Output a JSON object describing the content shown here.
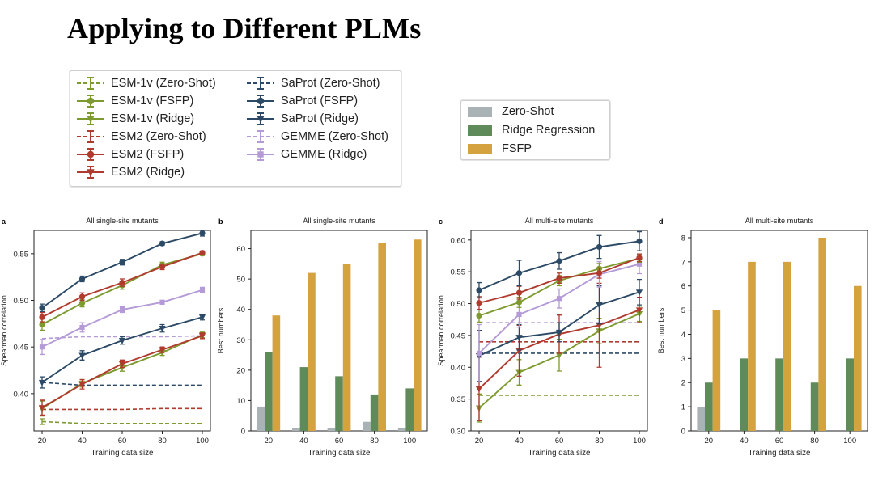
{
  "slide": {
    "title": "Applying to Different PLMs"
  },
  "legend_lines": {
    "items": [
      {
        "label": "ESM-1v (Zero-Shot)",
        "color": "#7d9a2e",
        "dash": true,
        "marker": "none"
      },
      {
        "label": "ESM-1v (FSFP)",
        "color": "#7d9a2e",
        "dash": false,
        "marker": "circle"
      },
      {
        "label": "ESM-1v (Ridge)",
        "color": "#7d9a2e",
        "dash": false,
        "marker": "tri"
      },
      {
        "label": "ESM2 (Zero-Shot)",
        "color": "#b03a2e",
        "dash": true,
        "marker": "none"
      },
      {
        "label": "ESM2 (FSFP)",
        "color": "#b03a2e",
        "dash": false,
        "marker": "circle"
      },
      {
        "label": "ESM2 (Ridge)",
        "color": "#b03a2e",
        "dash": false,
        "marker": "tri"
      },
      {
        "label": "SaProt (Zero-Shot)",
        "color": "#2c4a66",
        "dash": true,
        "marker": "none"
      },
      {
        "label": "SaProt (FSFP)",
        "color": "#2c4a66",
        "dash": false,
        "marker": "circle"
      },
      {
        "label": "SaProt (Ridge)",
        "color": "#2c4a66",
        "dash": false,
        "marker": "tri"
      },
      {
        "label": "GEMME (Zero-Shot)",
        "color": "#b49ad6",
        "dash": true,
        "marker": "none"
      },
      {
        "label": "GEMME (Ridge)",
        "color": "#b49ad6",
        "dash": false,
        "marker": "square"
      }
    ]
  },
  "legend_bars": {
    "items": [
      {
        "label": "Zero-Shot",
        "color": "#a9b2b5"
      },
      {
        "label": "Ridge Regression",
        "color": "#5f8a5a"
      },
      {
        "label": "FSFP",
        "color": "#d4a23f"
      }
    ]
  },
  "chart_data": [
    {
      "panel": "a",
      "type": "line",
      "title": "All single-site mutants",
      "xlabel": "Training data size",
      "ylabel": "Spearman correlation",
      "x": [
        20,
        40,
        60,
        80,
        100
      ],
      "xlim": [
        20,
        100
      ],
      "ylim": [
        0.36,
        0.575
      ],
      "yticks": [
        0.4,
        0.45,
        0.5,
        0.55
      ],
      "ytick_labels": [
        "0.40",
        "0.45",
        "0.50",
        "0.55"
      ],
      "series": [
        {
          "name": "ESM-1v (Zero-Shot)",
          "color": "#7d9a2e",
          "dash": true,
          "marker": "none",
          "values": [
            0.37,
            0.368,
            0.368,
            0.368,
            0.368
          ],
          "err": [
            0.003,
            0,
            0,
            0,
            0
          ]
        },
        {
          "name": "ESM2 (Zero-Shot)",
          "color": "#b03a2e",
          "dash": true,
          "marker": "none",
          "values": [
            0.383,
            0.383,
            0.383,
            0.384,
            0.384
          ],
          "err": [
            0,
            0,
            0,
            0,
            0
          ]
        },
        {
          "name": "SaProt (Zero-Shot)",
          "color": "#2c4a66",
          "dash": true,
          "marker": "none",
          "values": [
            0.412,
            0.409,
            0.409,
            0.409,
            0.409
          ],
          "err": [
            0,
            0,
            0,
            0,
            0
          ]
        },
        {
          "name": "GEMME (Zero-Shot)",
          "color": "#b49ad6",
          "dash": true,
          "marker": "none",
          "values": [
            0.459,
            0.461,
            0.461,
            0.461,
            0.462
          ],
          "err": [
            0,
            0,
            0,
            0,
            0
          ]
        },
        {
          "name": "ESM-1v (Ridge)",
          "color": "#7d9a2e",
          "dash": false,
          "marker": "tri",
          "values": [
            0.384,
            0.411,
            0.428,
            0.444,
            0.463
          ],
          "err": [
            0.008,
            0.004,
            0.004,
            0.003,
            0.003
          ]
        },
        {
          "name": "ESM2 (Ridge)",
          "color": "#b03a2e",
          "dash": false,
          "marker": "tri",
          "values": [
            0.385,
            0.41,
            0.432,
            0.447,
            0.462
          ],
          "err": [
            0.008,
            0.005,
            0.004,
            0.003,
            0.003
          ]
        },
        {
          "name": "SaProt (Ridge)",
          "color": "#2c4a66",
          "dash": false,
          "marker": "tri",
          "values": [
            0.412,
            0.441,
            0.457,
            0.47,
            0.482
          ],
          "err": [
            0.006,
            0.005,
            0.004,
            0.004,
            0.003
          ]
        },
        {
          "name": "GEMME (Ridge)",
          "color": "#b49ad6",
          "dash": false,
          "marker": "square",
          "values": [
            0.45,
            0.471,
            0.49,
            0.498,
            0.511
          ],
          "err": [
            0.008,
            0.005,
            0.003,
            0.002,
            0.003
          ]
        },
        {
          "name": "ESM-1v (FSFP)",
          "color": "#7d9a2e",
          "dash": false,
          "marker": "circle",
          "values": [
            0.474,
            0.497,
            0.516,
            0.538,
            0.55
          ],
          "err": [
            0.006,
            0.004,
            0.004,
            0.003,
            0.002
          ]
        },
        {
          "name": "ESM2 (FSFP)",
          "color": "#b03a2e",
          "dash": false,
          "marker": "circle",
          "values": [
            0.482,
            0.504,
            0.519,
            0.536,
            0.551
          ],
          "err": [
            0.005,
            0.004,
            0.004,
            0.003,
            0.002
          ]
        },
        {
          "name": "SaProt (FSFP)",
          "color": "#2c4a66",
          "dash": false,
          "marker": "circle",
          "values": [
            0.492,
            0.523,
            0.541,
            0.561,
            0.572
          ],
          "err": [
            0.004,
            0.003,
            0.003,
            0.002,
            0.003
          ]
        }
      ]
    },
    {
      "panel": "b",
      "type": "bar",
      "title": "All single-site mutants",
      "xlabel": "Training data size",
      "ylabel": "Best numbers",
      "categories": [
        "20",
        "40",
        "60",
        "80",
        "100"
      ],
      "ylim": [
        0,
        66
      ],
      "yticks": [
        0,
        10,
        20,
        30,
        40,
        50,
        60
      ],
      "series": [
        {
          "name": "Zero-Shot",
          "color": "#a9b2b5",
          "values": [
            8,
            1,
            1,
            3,
            1
          ]
        },
        {
          "name": "Ridge Regression",
          "color": "#5f8a5a",
          "values": [
            26,
            21,
            18,
            12,
            14
          ]
        },
        {
          "name": "FSFP",
          "color": "#d4a23f",
          "values": [
            38,
            52,
            55,
            62,
            63
          ]
        }
      ]
    },
    {
      "panel": "c",
      "type": "line",
      "title": "All multi-site mutants",
      "xlabel": "Training data size",
      "ylabel": "Spearman correlation",
      "x": [
        20,
        40,
        60,
        80,
        100
      ],
      "xlim": [
        20,
        100
      ],
      "ylim": [
        0.3,
        0.615
      ],
      "yticks": [
        0.3,
        0.35,
        0.4,
        0.45,
        0.5,
        0.55,
        0.6
      ],
      "ytick_labels": [
        "0.30",
        "0.35",
        "0.40",
        "0.45",
        "0.50",
        "0.55",
        "0.60"
      ],
      "series": [
        {
          "name": "ESM-1v (Zero-Shot)",
          "color": "#7d9a2e",
          "dash": true,
          "marker": "none",
          "values": [
            0.356,
            0.356,
            0.356,
            0.356,
            0.356
          ],
          "err": [
            0,
            0,
            0,
            0,
            0
          ]
        },
        {
          "name": "SaProt (Zero-Shot)",
          "color": "#2c4a66",
          "dash": true,
          "marker": "none",
          "values": [
            0.422,
            0.422,
            0.422,
            0.422,
            0.422
          ],
          "err": [
            0,
            0,
            0,
            0,
            0
          ]
        },
        {
          "name": "ESM2 (Zero-Shot)",
          "color": "#b03a2e",
          "dash": true,
          "marker": "none",
          "values": [
            0.44,
            0.44,
            0.44,
            0.44,
            0.44
          ],
          "err": [
            0,
            0,
            0,
            0,
            0
          ]
        },
        {
          "name": "GEMME (Zero-Shot)",
          "color": "#b49ad6",
          "dash": true,
          "marker": "none",
          "values": [
            0.47,
            0.47,
            0.47,
            0.47,
            0.47
          ],
          "err": [
            0,
            0,
            0,
            0,
            0
          ]
        },
        {
          "name": "ESM-1v (Ridge)",
          "color": "#7d9a2e",
          "dash": false,
          "marker": "tri",
          "values": [
            0.336,
            0.392,
            0.419,
            0.457,
            0.484
          ],
          "err": [
            0.022,
            0.02,
            0.025,
            0.02,
            0.012
          ]
        },
        {
          "name": "ESM2 (Ridge)",
          "color": "#b03a2e",
          "dash": false,
          "marker": "tri",
          "values": [
            0.366,
            0.426,
            0.452,
            0.466,
            0.49
          ],
          "err": [
            0.05,
            0.04,
            0.03,
            0.066,
            0.02
          ]
        },
        {
          "name": "SaProt (Ridge)",
          "color": "#2c4a66",
          "dash": false,
          "marker": "tri",
          "values": [
            0.418,
            0.447,
            0.455,
            0.498,
            0.518
          ],
          "err": [
            0.04,
            0.02,
            0.015,
            0.03,
            0.02
          ]
        },
        {
          "name": "GEMME (Ridge)",
          "color": "#b49ad6",
          "dash": false,
          "marker": "square",
          "values": [
            0.422,
            0.483,
            0.508,
            0.546,
            0.562
          ],
          "err": [
            0.045,
            0.02,
            0.015,
            0.02,
            0.015
          ]
        },
        {
          "name": "ESM-1v (FSFP)",
          "color": "#7d9a2e",
          "dash": false,
          "marker": "circle",
          "values": [
            0.481,
            0.502,
            0.536,
            0.555,
            0.571
          ],
          "err": [
            0.01,
            0.008,
            0.008,
            0.008,
            0.006
          ]
        },
        {
          "name": "ESM2 (FSFP)",
          "color": "#b03a2e",
          "dash": false,
          "marker": "circle",
          "values": [
            0.501,
            0.517,
            0.54,
            0.548,
            0.572
          ],
          "err": [
            0.01,
            0.01,
            0.008,
            0.008,
            0.006
          ]
        },
        {
          "name": "SaProt (FSFP)",
          "color": "#2c4a66",
          "dash": false,
          "marker": "circle",
          "values": [
            0.521,
            0.548,
            0.567,
            0.589,
            0.598
          ],
          "err": [
            0.012,
            0.02,
            0.013,
            0.018,
            0.015
          ]
        }
      ]
    },
    {
      "panel": "d",
      "type": "bar",
      "title": "All multi-site mutants",
      "xlabel": "Training data size",
      "ylabel": "Best numbers",
      "categories": [
        "20",
        "40",
        "60",
        "80",
        "100"
      ],
      "ylim": [
        0,
        8.3
      ],
      "yticks": [
        0,
        1,
        2,
        3,
        4,
        5,
        6,
        7,
        8
      ],
      "series": [
        {
          "name": "Zero-Shot",
          "color": "#a9b2b5",
          "values": [
            1,
            0,
            0,
            0,
            0
          ]
        },
        {
          "name": "Ridge Regression",
          "color": "#5f8a5a",
          "values": [
            2,
            3,
            3,
            2,
            3
          ]
        },
        {
          "name": "FSFP",
          "color": "#d4a23f",
          "values": [
            5,
            7,
            7,
            8,
            6
          ]
        }
      ]
    }
  ]
}
